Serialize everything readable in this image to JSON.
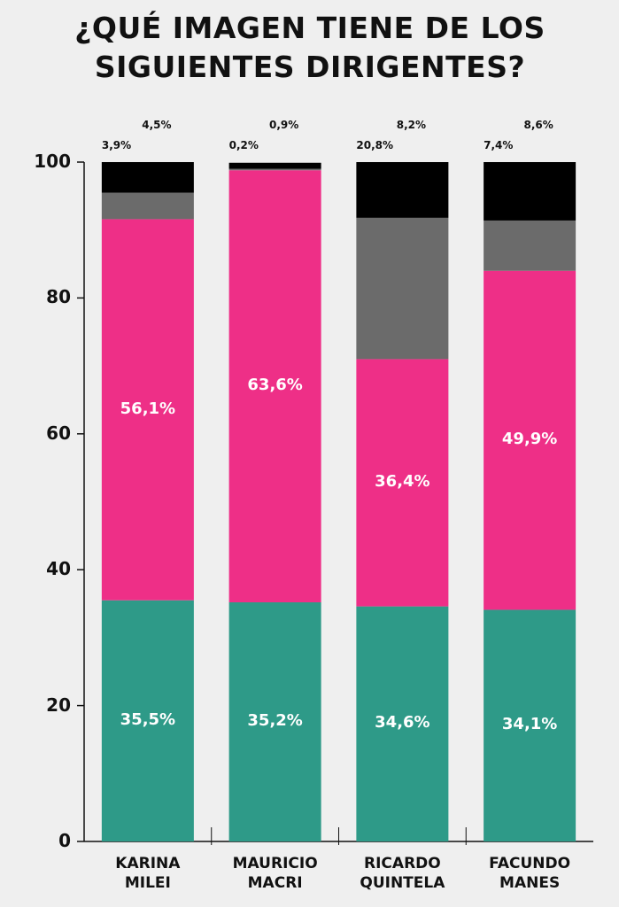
{
  "chart_data": {
    "type": "stacked_bar",
    "title": "¿QUÉ IMAGEN TIENE DE LOS SIGUIENTES DIRIGENTES?",
    "categories": [
      "KARINA MILEI",
      "MAURICIO MACRI",
      "RICARDO QUINTELA",
      "FACUNDO MANES"
    ],
    "series": [
      {
        "color": "#2e9a88",
        "values": [
          35.5,
          35.2,
          34.6,
          34.1
        ],
        "value_labels": [
          "35,5%",
          "35,2%",
          "34,6%",
          "34,1%"
        ]
      },
      {
        "color": "#ee2f87",
        "values": [
          56.1,
          63.6,
          36.4,
          49.9
        ],
        "value_labels": [
          "56,1%",
          "63,6%",
          "36,4%",
          "49,9%"
        ]
      },
      {
        "color": "#6b6b6b",
        "values": [
          3.9,
          0.2,
          20.8,
          7.4
        ],
        "value_labels": [
          "3,9%",
          "0,2%",
          "20,8%",
          "7,4%"
        ]
      },
      {
        "color": "#000000",
        "values": [
          4.5,
          0.9,
          8.2,
          8.6
        ],
        "value_labels": [
          "4,5%",
          "0,9%",
          "8,2%",
          "8,6%"
        ]
      }
    ],
    "ylim": [
      0,
      100
    ],
    "yticks": [
      0,
      20,
      40,
      60,
      80,
      100
    ]
  }
}
